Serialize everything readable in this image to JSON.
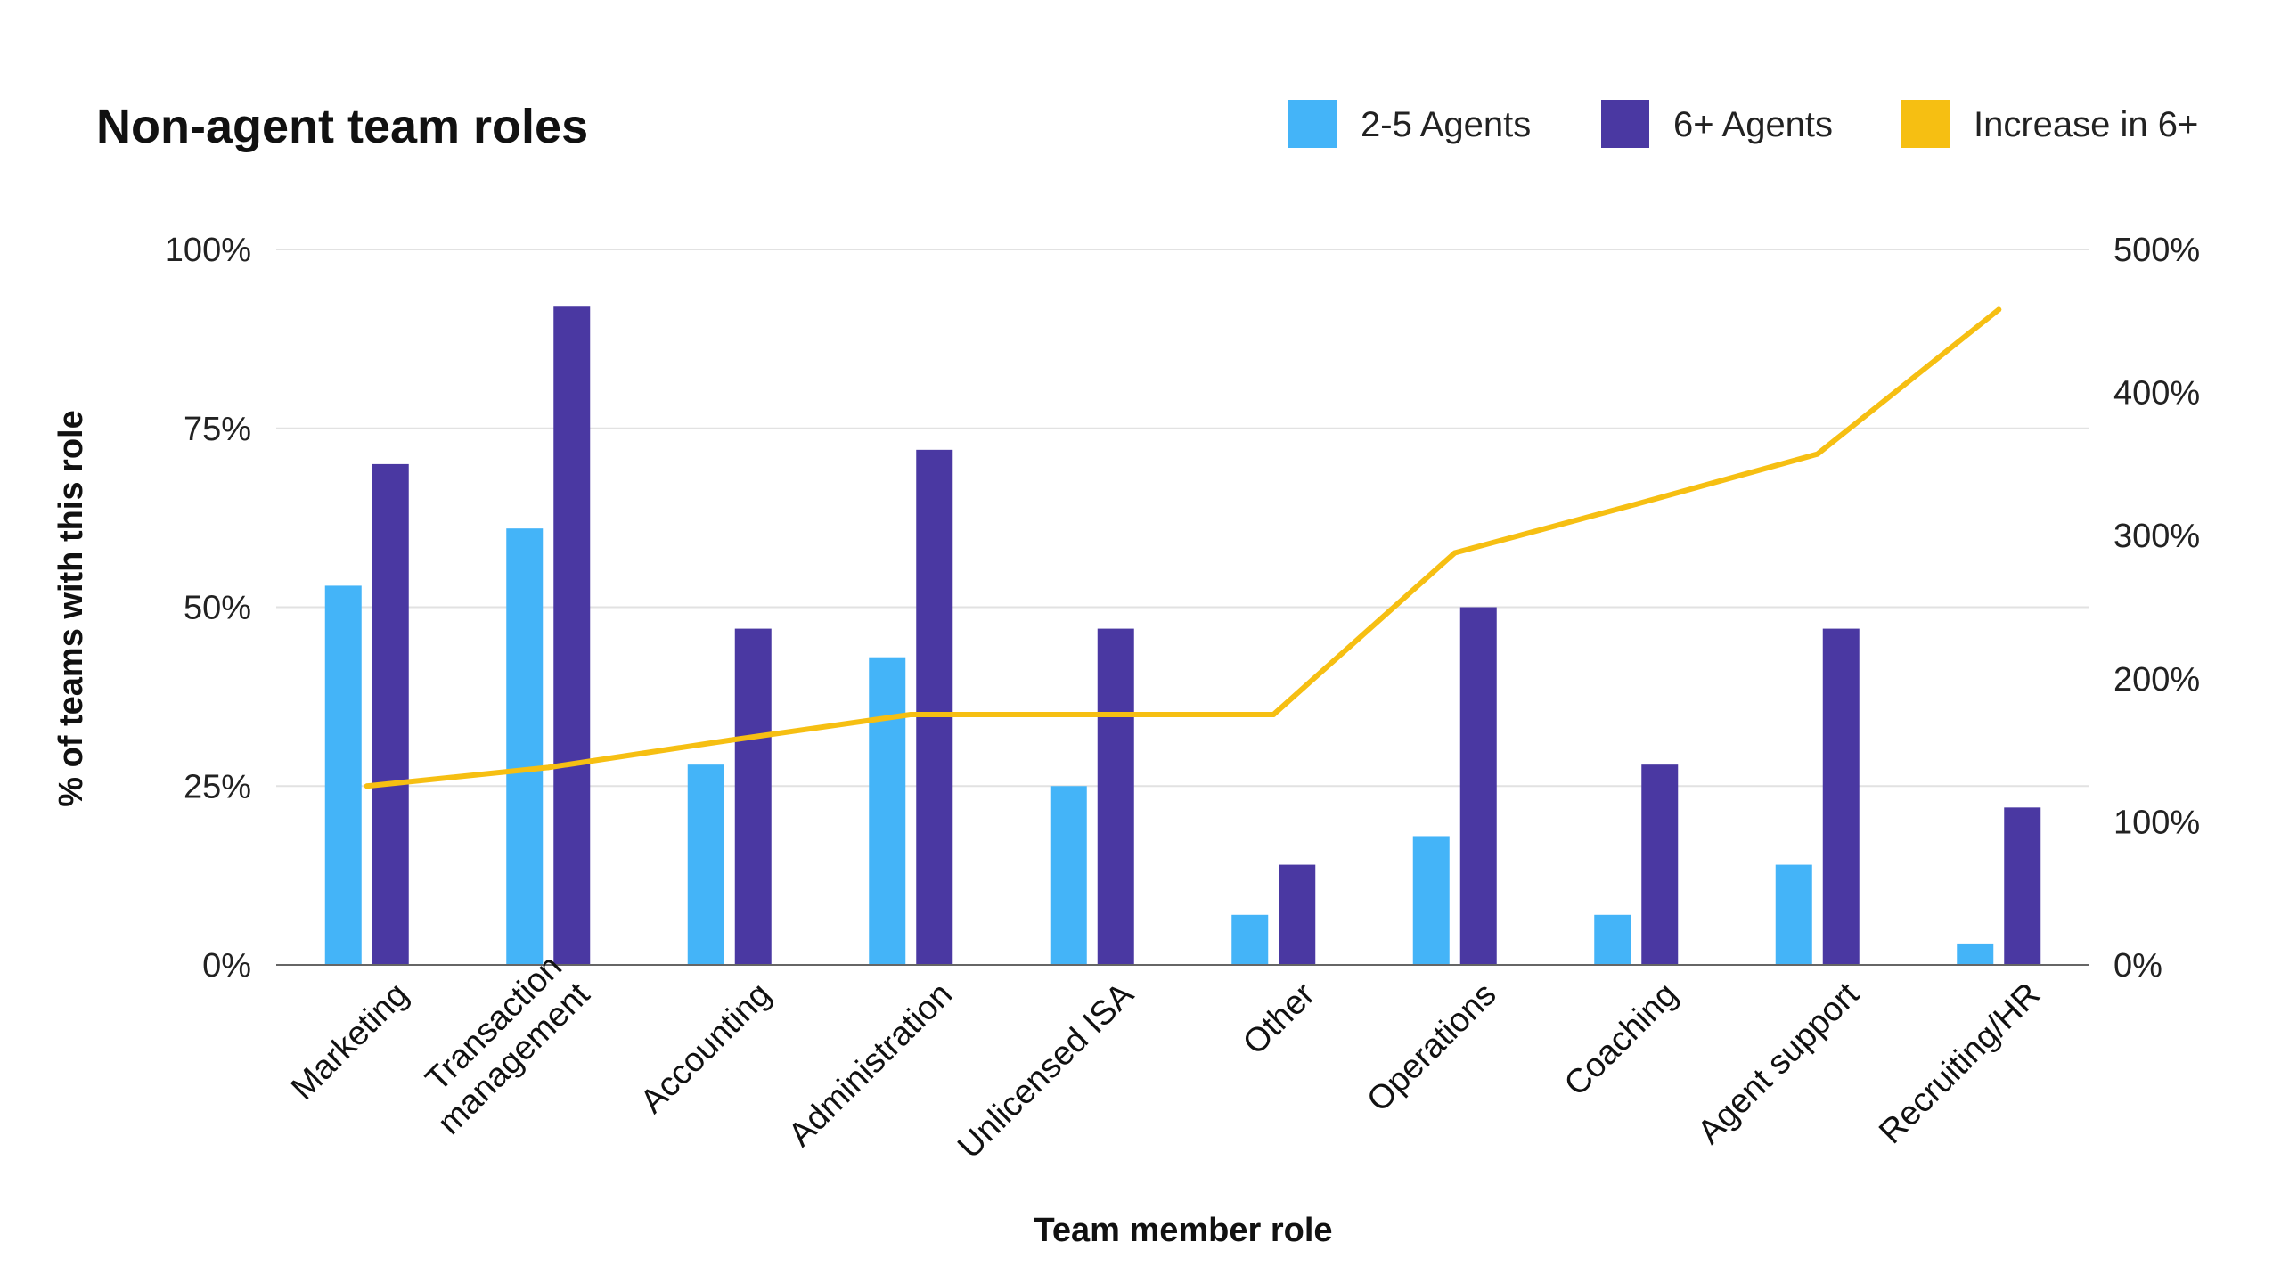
{
  "chart_data": {
    "type": "bar",
    "title": "Non-agent team roles",
    "xlabel": "Team member role",
    "ylabel": "% of teams with this role",
    "categories": [
      [
        "Marketing"
      ],
      [
        "Transaction",
        "management"
      ],
      [
        "Accounting"
      ],
      [
        "Administration"
      ],
      [
        "Unlicensed ISA"
      ],
      [
        "Other"
      ],
      [
        "Operations"
      ],
      [
        "Coaching"
      ],
      [
        "Agent support"
      ],
      [
        "Recruiting/HR"
      ]
    ],
    "series": [
      {
        "name": "2-5 Agents",
        "kind": "bar",
        "axis": "left",
        "color": "#44B4F8",
        "values": [
          53,
          61,
          28,
          43,
          25,
          7,
          18,
          7,
          14,
          3
        ]
      },
      {
        "name": "6+ Agents",
        "kind": "bar",
        "axis": "left",
        "color": "#4A38A2",
        "values": [
          70,
          92,
          47,
          72,
          47,
          14,
          50,
          28,
          47,
          22
        ]
      },
      {
        "name": "Increase in 6+",
        "kind": "line",
        "axis": "right",
        "color": "#F6BF12",
        "values": [
          125,
          138,
          157,
          175,
          175,
          175,
          288,
          322,
          357,
          458
        ]
      }
    ],
    "y_left": {
      "range": [
        0,
        100
      ],
      "ticks": [
        0,
        25,
        50,
        75,
        100
      ],
      "tick_labels": [
        "0%",
        "25%",
        "50%",
        "75%",
        "100%"
      ]
    },
    "y_right": {
      "range": [
        0,
        500
      ],
      "ticks": [
        0,
        100,
        200,
        300,
        400,
        500
      ],
      "tick_labels": [
        "0%",
        "100%",
        "200%",
        "300%",
        "400%",
        "500%"
      ]
    },
    "grid": true,
    "legend_position": "top-right"
  }
}
